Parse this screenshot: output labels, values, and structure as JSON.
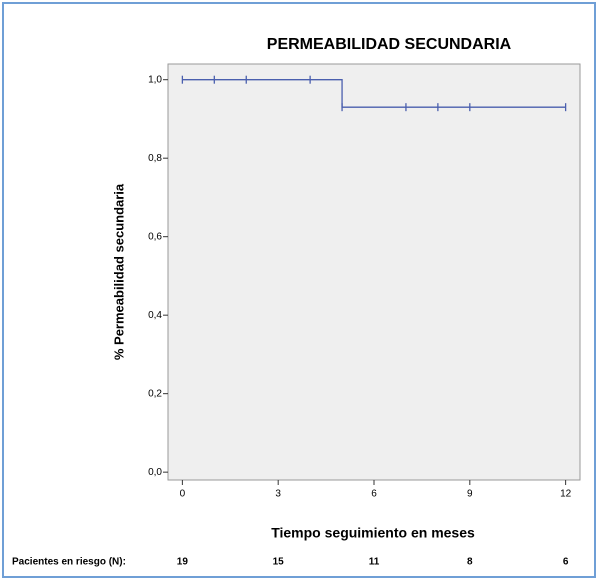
{
  "chart_data": {
    "type": "kaplan-meier",
    "title": "PERMEABILIDAD SECUNDARIA",
    "xlabel": "Tiempo seguimiento en meses",
    "ylabel": "% Permeabilidad secundaria",
    "xlim": [
      -0.45,
      12.45
    ],
    "ylim": [
      -0.02,
      1.04
    ],
    "xticks": [
      0,
      3,
      6,
      9,
      12
    ],
    "yticks": [
      {
        "value": 0,
        "label": "0,0"
      },
      {
        "value": 0.2,
        "label": "0,2"
      },
      {
        "value": 0.4,
        "label": "0,4"
      },
      {
        "value": 0.6,
        "label": "0,6"
      },
      {
        "value": 0.8,
        "label": "0,8"
      },
      {
        "value": 1,
        "label": "1,0"
      }
    ],
    "series": [
      {
        "color": "#4a5fae",
        "x": [
          0,
          5,
          5,
          12
        ],
        "values": [
          1,
          1,
          0.93,
          0.93
        ],
        "censored": {
          "x": [
            0,
            1,
            2,
            4,
            5,
            7,
            8,
            9,
            12
          ],
          "values": [
            1,
            1,
            1,
            1,
            0.93,
            0.93,
            0.93,
            0.93,
            0.93
          ]
        }
      }
    ],
    "at_risk": {
      "label": "Pacientes en riesgo (N):",
      "values": [
        19,
        15,
        11,
        8,
        6
      ]
    }
  }
}
